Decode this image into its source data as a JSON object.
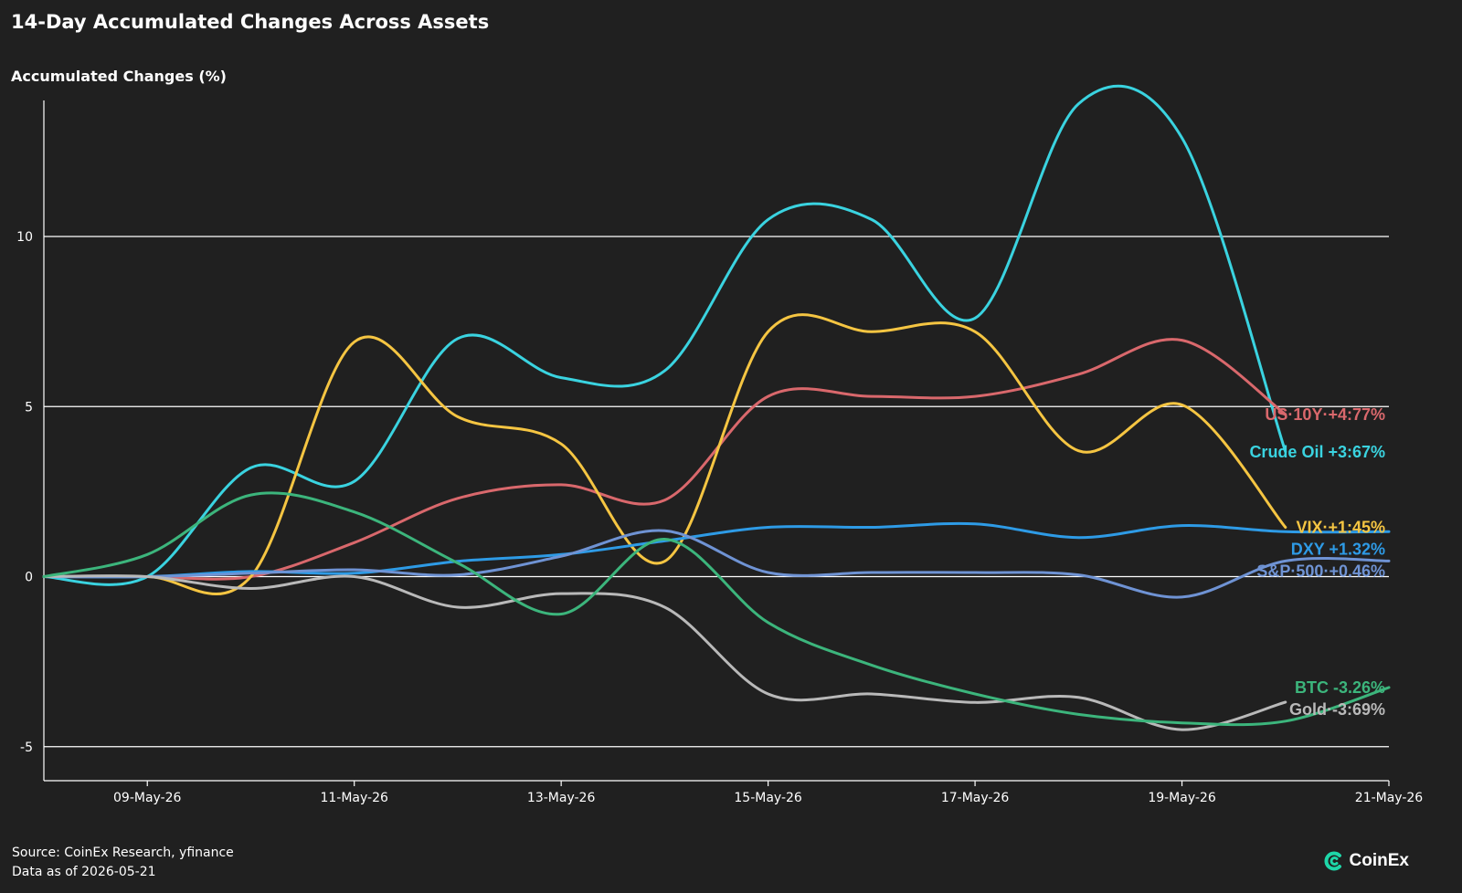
{
  "header": {
    "title": "14-Day Accumulated Changes Across Assets"
  },
  "footer": {
    "source": "Source: CoinEx Research, yfinance",
    "data_as_of": "Data as of 2026-05-21"
  },
  "brand": {
    "name": "CoinEx",
    "icon": "coinex-logo-icon",
    "color": "#1ed6a8"
  },
  "chart_data": {
    "type": "line",
    "title": "14-Day Accumulated Changes Across Assets",
    "xlabel": "",
    "ylabel": "Accumulated Changes (%)",
    "x": [
      "2026-05-08",
      "2026-05-09",
      "2026-05-10",
      "2026-05-11",
      "2026-05-12",
      "2026-05-13",
      "2026-05-14",
      "2026-05-15",
      "2026-05-16",
      "2026-05-17",
      "2026-05-18",
      "2026-05-19",
      "2026-05-20",
      "2026-05-21"
    ],
    "x_ticks": [
      "09-May-26",
      "11-May-26",
      "13-May-26",
      "15-May-26",
      "17-May-26",
      "19-May-26",
      "21-May-26"
    ],
    "y_ticks": [
      -5,
      0,
      5,
      10
    ],
    "xlim": [
      "2026-05-08",
      "2026-05-21"
    ],
    "ylim": [
      -6,
      14
    ],
    "grid": "horizontal",
    "legend": "end-of-line labels",
    "series": [
      {
        "name": "Crude Oil",
        "label": "Crude Oil +3:67%",
        "color": "#3ad3e0",
        "points": [
          [
            "2026-05-08",
            0
          ],
          [
            "2026-05-09",
            0
          ],
          [
            "2026-05-10",
            3.2
          ],
          [
            "2026-05-11",
            2.8
          ],
          [
            "2026-05-12",
            7.0
          ],
          [
            "2026-05-13",
            5.85
          ],
          [
            "2026-05-14",
            6.05
          ],
          [
            "2026-05-15",
            10.5
          ],
          [
            "2026-05-16",
            10.5
          ],
          [
            "2026-05-17",
            7.6
          ],
          [
            "2026-05-18",
            13.9
          ],
          [
            "2026-05-19",
            12.9
          ],
          [
            "2026-05-20",
            3.67
          ]
        ]
      },
      {
        "name": "US 10Y",
        "label": "US·10Y·+4:77%",
        "color": "#d9686c",
        "points": [
          [
            "2026-05-08",
            0
          ],
          [
            "2026-05-09",
            0
          ],
          [
            "2026-05-10",
            0
          ],
          [
            "2026-05-11",
            1.0
          ],
          [
            "2026-05-12",
            2.3
          ],
          [
            "2026-05-13",
            2.7
          ],
          [
            "2026-05-14",
            2.25
          ],
          [
            "2026-05-15",
            5.3
          ],
          [
            "2026-05-16",
            5.3
          ],
          [
            "2026-05-17",
            5.3
          ],
          [
            "2026-05-18",
            5.95
          ],
          [
            "2026-05-19",
            6.95
          ],
          [
            "2026-05-20",
            4.77
          ]
        ]
      },
      {
        "name": "VIX",
        "label": "VIX·+1:45%",
        "color": "#f5c542",
        "points": [
          [
            "2026-05-08",
            0
          ],
          [
            "2026-05-09",
            0
          ],
          [
            "2026-05-10",
            0
          ],
          [
            "2026-05-11",
            6.9
          ],
          [
            "2026-05-12",
            4.7
          ],
          [
            "2026-05-13",
            3.9
          ],
          [
            "2026-05-14",
            0.45
          ],
          [
            "2026-05-15",
            7.2
          ],
          [
            "2026-05-16",
            7.2
          ],
          [
            "2026-05-17",
            7.2
          ],
          [
            "2026-05-18",
            3.7
          ],
          [
            "2026-05-19",
            5.05
          ],
          [
            "2026-05-20",
            1.45
          ]
        ]
      },
      {
        "name": "DXY",
        "label": "DXY +1.32%",
        "color": "#2e9be6",
        "points": [
          [
            "2026-05-08",
            0
          ],
          [
            "2026-05-09",
            0
          ],
          [
            "2026-05-10",
            0.15
          ],
          [
            "2026-05-11",
            0.1
          ],
          [
            "2026-05-12",
            0.45
          ],
          [
            "2026-05-13",
            0.65
          ],
          [
            "2026-05-14",
            1.05
          ],
          [
            "2026-05-15",
            1.45
          ],
          [
            "2026-05-16",
            1.45
          ],
          [
            "2026-05-17",
            1.55
          ],
          [
            "2026-05-18",
            1.15
          ],
          [
            "2026-05-19",
            1.5
          ],
          [
            "2026-05-20",
            1.32
          ],
          [
            "2026-05-21",
            1.32
          ]
        ]
      },
      {
        "name": "S&P 500",
        "label": "S&P·500·+0.46%",
        "color": "#6f93d4",
        "points": [
          [
            "2026-05-08",
            0
          ],
          [
            "2026-05-09",
            0
          ],
          [
            "2026-05-10",
            0.1
          ],
          [
            "2026-05-11",
            0.2
          ],
          [
            "2026-05-12",
            0.05
          ],
          [
            "2026-05-13",
            0.6
          ],
          [
            "2026-05-14",
            1.35
          ],
          [
            "2026-05-15",
            0.12
          ],
          [
            "2026-05-16",
            0.12
          ],
          [
            "2026-05-17",
            0.12
          ],
          [
            "2026-05-18",
            0.05
          ],
          [
            "2026-05-19",
            -0.6
          ],
          [
            "2026-05-20",
            0.46
          ],
          [
            "2026-05-21",
            0.46
          ]
        ]
      },
      {
        "name": "Gold",
        "label": "Gold·-3:69%",
        "color": "#b9b9b9",
        "points": [
          [
            "2026-05-08",
            0
          ],
          [
            "2026-05-09",
            0
          ],
          [
            "2026-05-10",
            -0.35
          ],
          [
            "2026-05-11",
            0
          ],
          [
            "2026-05-12",
            -0.9
          ],
          [
            "2026-05-13",
            -0.5
          ],
          [
            "2026-05-14",
            -0.9
          ],
          [
            "2026-05-15",
            -3.45
          ],
          [
            "2026-05-16",
            -3.45
          ],
          [
            "2026-05-17",
            -3.7
          ],
          [
            "2026-05-18",
            -3.55
          ],
          [
            "2026-05-19",
            -4.5
          ],
          [
            "2026-05-20",
            -3.69
          ]
        ]
      },
      {
        "name": "BTC",
        "label": "BTC -3.26%",
        "color": "#3cb57c",
        "points": [
          [
            "2026-05-08",
            0
          ],
          [
            "2026-05-09",
            0.65
          ],
          [
            "2026-05-10",
            2.4
          ],
          [
            "2026-05-11",
            1.9
          ],
          [
            "2026-05-12",
            0.4
          ],
          [
            "2026-05-13",
            -1.1
          ],
          [
            "2026-05-14",
            1.1
          ],
          [
            "2026-05-15",
            -1.35
          ],
          [
            "2026-05-16",
            -2.6
          ],
          [
            "2026-05-17",
            -3.45
          ],
          [
            "2026-05-18",
            -4.05
          ],
          [
            "2026-05-19",
            -4.3
          ],
          [
            "2026-05-20",
            -4.25
          ],
          [
            "2026-05-21",
            -3.26
          ]
        ]
      }
    ]
  }
}
